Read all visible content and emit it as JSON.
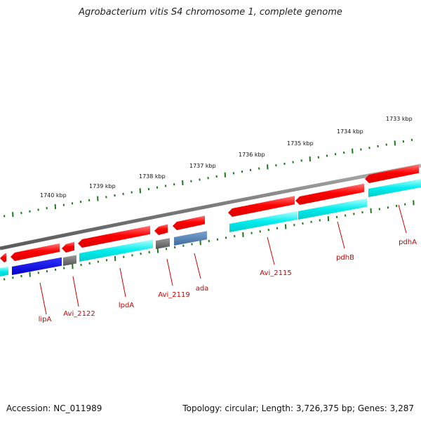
{
  "title": "Agrobacterium vitis S4 chromosome 1, complete genome",
  "footer": {
    "accession": "Accession: NC_011989",
    "summary": "Topology: circular; Length: 3,726,375 bp; Genes: 3,287"
  },
  "colors": {
    "cds": "#ff0000",
    "cds_light": "#ff7777",
    "gene": "#00e5e5",
    "gene_light": "#b3ffff",
    "gene_blue": "#0000e0",
    "gene_steel": "#4a7fb5",
    "pseudo_gray": "#707070",
    "backbone": "#808080",
    "ticks": "#1a7a1a",
    "label": "#cc0000"
  },
  "ruler": {
    "labels": [
      "1740 kbp",
      "1739 kbp",
      "1738 kbp",
      "1737 kbp",
      "1736 kbp",
      "1735 kbp",
      "1734 kbp",
      "1733 kbp"
    ]
  },
  "gene_labels": [
    "lipA",
    "Avi_2122",
    "lpdA",
    "Avi_2119",
    "ada",
    "Avi_2115",
    "pdhB",
    "pdhA"
  ]
}
